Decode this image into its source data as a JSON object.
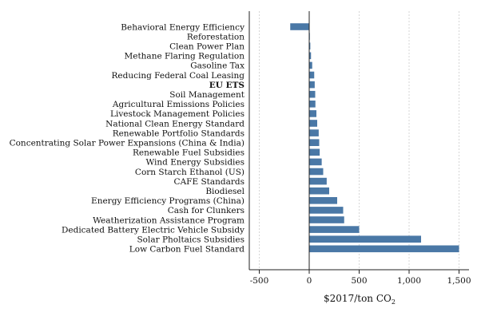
{
  "chart_data": {
    "type": "bar",
    "orientation": "horizontal",
    "categories": [
      "Behavioral Energy Efficiency",
      "Reforestation",
      "Clean Power Plan",
      "Methane Flaring Regulation",
      "Gasoline Tax",
      "Reducing Federal Coal Leasing",
      "EU ETS",
      "Soil Management",
      "Agricultural Emissions Policies",
      "Livestock Management Policies",
      "National Clean Energy Standard",
      "Renewable Portfolio Standards",
      "Concentrating Solar Power Expansions (China & India)",
      "Renewable Fuel Subsidies",
      "Wind Energy Subsidies",
      "Corn Starch Ethanol (US)",
      "CAFE Standards",
      "Biodiesel",
      "Energy Efficiency Programs (China)",
      "Cash for Clunkers",
      "Weatherization Assistance Program",
      "Dedicated Battery Electric Vehicle Subsidy",
      "Solar Pholtaics Subsidies",
      "Low Carbon Fuel Standard"
    ],
    "bold_categories": [
      "EU ETS"
    ],
    "values": [
      -190,
      2,
      11,
      18,
      30,
      50,
      55,
      60,
      62,
      72,
      80,
      95,
      100,
      105,
      125,
      140,
      175,
      200,
      280,
      340,
      350,
      500,
      1120,
      1500
    ],
    "xlabel": "$2017/ton CO",
    "xlabel_subscript": "2",
    "xticks": [
      -500,
      0,
      500,
      1000,
      1500
    ],
    "xtick_labels": [
      "-500",
      "0",
      "500",
      "1,000",
      "1,500"
    ],
    "xlim": [
      -600,
      1600
    ],
    "grid": "vertical dashed",
    "bar_color": "#4a78a6",
    "zero_line_color": "#222222",
    "grid_color": "#cccccc"
  }
}
